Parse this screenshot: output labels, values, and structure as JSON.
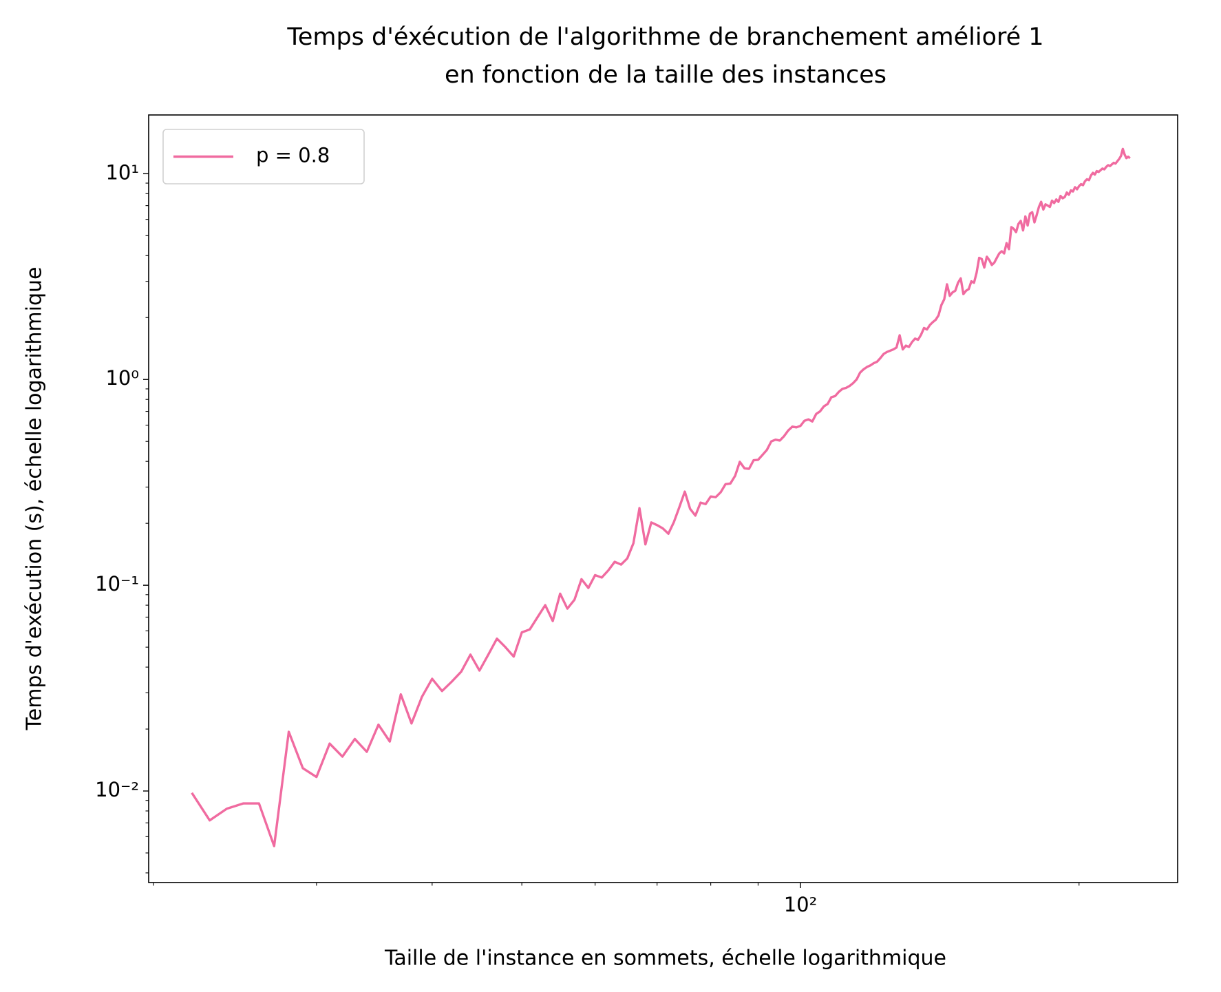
{
  "chart_data": {
    "type": "line",
    "title": [
      "Temps d'éxécution de l'algorithme de branchement amélioré 1",
      "en fonction de la taille des instances"
    ],
    "xlabel": "Taille de l'instance en sommets, échelle logarithmique",
    "ylabel": "Temps d'exécution (s), échelle logarithmique",
    "xscale": "log",
    "yscale": "log",
    "xlim": [
      19.76,
      255.6
    ],
    "ylim": [
      0.00359,
      19.3
    ],
    "xticks": [
      {
        "value": 100,
        "label": "10²"
      }
    ],
    "xticks_minor": [
      20,
      30,
      40,
      50,
      60,
      70,
      80,
      90,
      200
    ],
    "yticks": [
      {
        "value": 0.01,
        "label": "10⁻²"
      },
      {
        "value": 0.1,
        "label": "10⁻¹"
      },
      {
        "value": 1,
        "label": "10⁰"
      },
      {
        "value": 10,
        "label": "10¹"
      }
    ],
    "yticks_minor": [
      0.004,
      0.005,
      0.006,
      0.007,
      0.008,
      0.009,
      0.02,
      0.03,
      0.04,
      0.05,
      0.06,
      0.07,
      0.08,
      0.09,
      0.2,
      0.3,
      0.4,
      0.5,
      0.6,
      0.7,
      0.8,
      0.9,
      2,
      3,
      4,
      5,
      6,
      7,
      8,
      9
    ],
    "legend": "upper left",
    "x": [
      22,
      23,
      24,
      25,
      26,
      27,
      28,
      29,
      30,
      31,
      32,
      33,
      34,
      35,
      36,
      37,
      38,
      39,
      40,
      41,
      42,
      43,
      44,
      45,
      46,
      47,
      48,
      49,
      50,
      51,
      52,
      53,
      54,
      55,
      56,
      57,
      58,
      59,
      60,
      61,
      62,
      63,
      64,
      65,
      66,
      67,
      68,
      69,
      70,
      71,
      72,
      73,
      74,
      75,
      76,
      77,
      78,
      79,
      80,
      81,
      82,
      83,
      84,
      85,
      86,
      87,
      88,
      89,
      90,
      91,
      92,
      93,
      94,
      95,
      96,
      97,
      98,
      99,
      100,
      101,
      102,
      103,
      104,
      105,
      106,
      107,
      108,
      109,
      110,
      111,
      112,
      113,
      114,
      115,
      116,
      117,
      118,
      119,
      120,
      121,
      122,
      123,
      124,
      125,
      126,
      127,
      128,
      129,
      130,
      131,
      132,
      133,
      134,
      135,
      136,
      137,
      138,
      139,
      140,
      141,
      142,
      143,
      144,
      145,
      146,
      147,
      148,
      149,
      150,
      151,
      152,
      153,
      154,
      155,
      156,
      157,
      158,
      159,
      160,
      161,
      162,
      163,
      164,
      165,
      166,
      167,
      168,
      169,
      170,
      171,
      172,
      173,
      174,
      175,
      176,
      177,
      178,
      179,
      180,
      181,
      182,
      183,
      184,
      185,
      186,
      187,
      188,
      189,
      190,
      191,
      192,
      193,
      194,
      195,
      196,
      197,
      198,
      199,
      200,
      201,
      202,
      203,
      204,
      205,
      206,
      207,
      208,
      209,
      210,
      211,
      212,
      213,
      214,
      215,
      216,
      217,
      218,
      219,
      220,
      221,
      222,
      223,
      224,
      225,
      226,
      227
    ],
    "series": [
      {
        "name": "p = 0.8",
        "color": "#f06ba0",
        "values": [
          0.0098,
          0.0072,
          0.0082,
          0.0087,
          0.0087,
          0.0054,
          0.0194,
          0.0129,
          0.0117,
          0.017,
          0.0147,
          0.0179,
          0.0155,
          0.021,
          0.0174,
          0.0295,
          0.0213,
          0.0287,
          0.0351,
          0.0306,
          0.034,
          0.038,
          0.046,
          0.0385,
          0.046,
          0.055,
          0.05,
          0.045,
          0.059,
          0.061,
          0.07,
          0.08,
          0.067,
          0.091,
          0.077,
          0.085,
          0.107,
          0.097,
          0.112,
          0.109,
          0.118,
          0.13,
          0.126,
          0.135,
          0.16,
          0.237,
          0.158,
          0.202,
          0.196,
          0.189,
          0.178,
          0.203,
          0.24,
          0.285,
          0.235,
          0.218,
          0.252,
          0.248,
          0.27,
          0.268,
          0.283,
          0.31,
          0.312,
          0.34,
          0.398,
          0.37,
          0.368,
          0.405,
          0.407,
          0.43,
          0.455,
          0.5,
          0.51,
          0.505,
          0.53,
          0.565,
          0.59,
          0.585,
          0.595,
          0.63,
          0.64,
          0.625,
          0.68,
          0.7,
          0.74,
          0.76,
          0.82,
          0.83,
          0.87,
          0.9,
          0.91,
          0.93,
          0.96,
          1.0,
          1.08,
          1.12,
          1.15,
          1.17,
          1.2,
          1.22,
          1.27,
          1.33,
          1.36,
          1.38,
          1.4,
          1.43,
          1.64,
          1.4,
          1.46,
          1.44,
          1.52,
          1.58,
          1.56,
          1.65,
          1.78,
          1.75,
          1.84,
          1.9,
          1.95,
          2.05,
          2.3,
          2.45,
          2.9,
          2.55,
          2.65,
          2.7,
          2.95,
          3.1,
          2.6,
          2.7,
          2.75,
          3.0,
          2.95,
          3.3,
          3.9,
          3.85,
          3.5,
          3.95,
          3.8,
          3.6,
          3.7,
          3.9,
          4.1,
          4.2,
          4.1,
          4.6,
          4.3,
          5.5,
          5.4,
          5.2,
          5.7,
          5.9,
          5.3,
          6.2,
          5.6,
          6.4,
          6.5,
          5.8,
          6.3,
          6.9,
          7.3,
          6.7,
          7.1,
          7.0,
          6.9,
          7.4,
          7.2,
          7.5,
          7.3,
          7.8,
          7.6,
          7.7,
          8.1,
          7.9,
          8.3,
          8.2,
          8.6,
          8.4,
          8.7,
          8.9,
          8.8,
          9.2,
          9.4,
          9.3,
          9.8,
          10.1,
          9.9,
          10.3,
          10.2,
          10.4,
          10.6,
          10.5,
          10.8,
          11.0,
          10.9,
          11.1,
          11.3,
          11.2,
          11.5,
          11.8,
          12.2,
          13.2,
          12.4,
          11.9,
          12.1,
          11.9
        ]
      }
    ]
  }
}
